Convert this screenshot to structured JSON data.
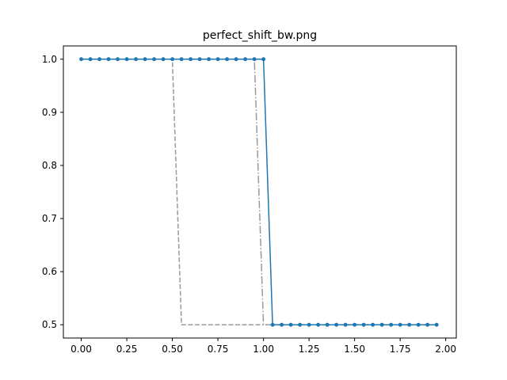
{
  "chart_data": {
    "type": "line",
    "title": "perfect_shift_bw.png",
    "xlabel": "",
    "ylabel": "",
    "xlim": [
      -0.098,
      2.058
    ],
    "ylim": [
      0.475,
      1.025
    ],
    "grid": false,
    "xticks": [
      0.0,
      0.25,
      0.5,
      0.75,
      1.0,
      1.25,
      1.5,
      1.75,
      2.0
    ],
    "xtick_labels": [
      "0.00",
      "0.25",
      "0.50",
      "0.75",
      "1.00",
      "1.25",
      "1.50",
      "1.75",
      "2.00"
    ],
    "yticks": [
      0.5,
      0.6,
      0.7,
      0.8,
      0.9,
      1.0
    ],
    "ytick_labels": [
      "0.5",
      "0.6",
      "0.7",
      "0.8",
      "0.9",
      "1.0"
    ],
    "series": [
      {
        "style": "solid-markers",
        "color": "#1f77b4",
        "x": [
          0.0,
          0.05,
          0.1,
          0.15,
          0.2,
          0.25,
          0.3,
          0.35,
          0.4,
          0.45,
          0.5,
          0.55,
          0.6,
          0.65,
          0.7,
          0.75,
          0.8,
          0.85,
          0.9,
          0.95,
          1.0,
          1.05,
          1.1,
          1.15,
          1.2,
          1.25,
          1.3,
          1.35,
          1.4,
          1.45,
          1.5,
          1.55,
          1.6,
          1.65,
          1.7,
          1.75,
          1.8,
          1.85,
          1.9,
          1.95
        ],
        "values": [
          1.0,
          1.0,
          1.0,
          1.0,
          1.0,
          1.0,
          1.0,
          1.0,
          1.0,
          1.0,
          1.0,
          1.0,
          1.0,
          1.0,
          1.0,
          1.0,
          1.0,
          1.0,
          1.0,
          1.0,
          1.0,
          0.5,
          0.5,
          0.5,
          0.5,
          0.5,
          0.5,
          0.5,
          0.5,
          0.5,
          0.5,
          0.5,
          0.5,
          0.5,
          0.5,
          0.5,
          0.5,
          0.5,
          0.5,
          0.5
        ]
      },
      {
        "style": "dashed",
        "color": "#999999",
        "x": [
          0.0,
          0.5,
          0.55,
          1.0
        ],
        "values": [
          1.0,
          1.0,
          0.5,
          0.5
        ]
      },
      {
        "style": "dashdot",
        "color": "#999999",
        "x": [
          0.0,
          0.95,
          1.0,
          1.05
        ],
        "values": [
          1.0,
          1.0,
          0.5,
          0.5
        ]
      }
    ]
  }
}
